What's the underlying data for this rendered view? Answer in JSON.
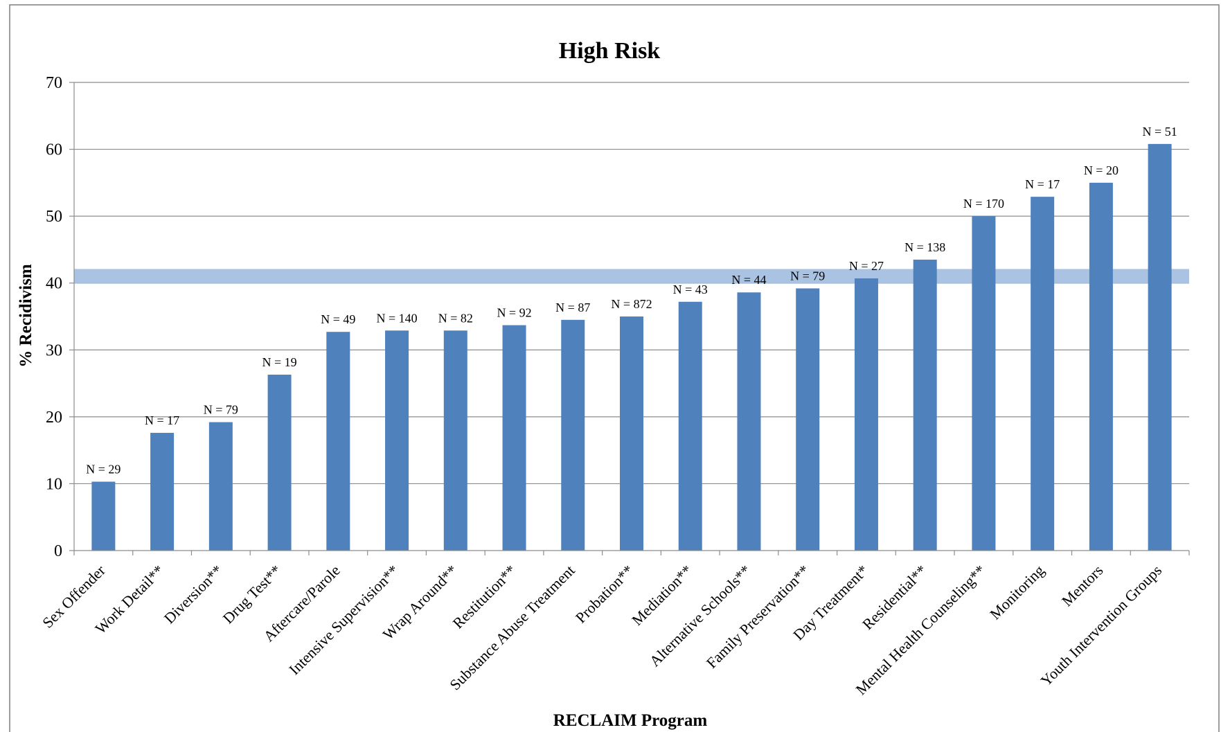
{
  "chart_data": {
    "type": "bar",
    "title": "High Risk",
    "xlabel": "RECLAIM Program",
    "ylabel": "% Recidivism",
    "ylim": [
      0,
      70
    ],
    "yticks": [
      0,
      10,
      20,
      30,
      40,
      50,
      60,
      70
    ],
    "grid": true,
    "legend": "none",
    "bar_color": "#4F81BD",
    "reference_band": {
      "value": 41,
      "color": "#A7C0E0"
    },
    "categories": [
      "Sex Offender",
      "Work Detail**",
      "Diversion**",
      "Drug Test**",
      "Aftercare/Parole",
      "Intensive Supervision**",
      "Wrap Around**",
      "Restitution**",
      "Substance Abuse Treatment",
      "Probation**",
      "Mediation**",
      "Alternative Schools**",
      "Family Preservation**",
      "Day Treatment*",
      "Residential**",
      "Mental Health Counseling**",
      "Monitoring",
      "Mentors",
      "Youth Intervention Groups"
    ],
    "values": [
      10.3,
      17.6,
      19.2,
      26.3,
      32.7,
      32.9,
      32.9,
      33.7,
      34.5,
      35.0,
      37.2,
      38.6,
      39.2,
      40.7,
      43.5,
      50.0,
      52.9,
      55.0,
      60.8
    ],
    "data_labels": [
      "N = 29",
      "N = 17",
      "N = 79",
      "N = 19",
      "N = 49",
      "N = 140",
      "N = 82",
      "N = 92",
      "N = 87",
      "N = 872",
      "N = 43",
      "N = 44",
      "N = 79",
      "N = 27",
      "N = 138",
      "N = 170",
      "N = 17",
      "N = 20",
      "N = 51"
    ]
  }
}
